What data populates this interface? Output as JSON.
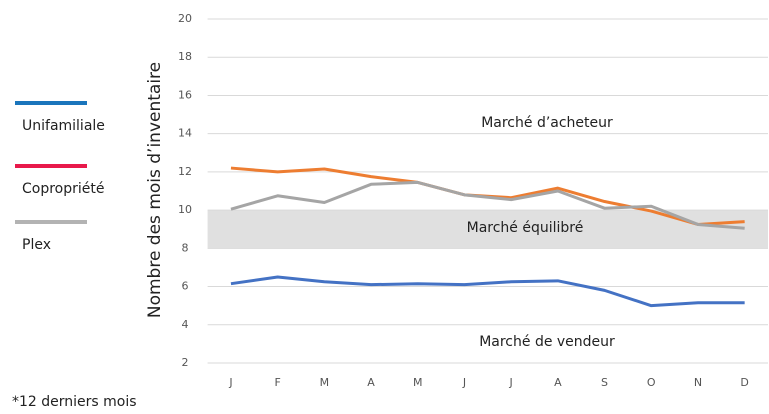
{
  "chart_data": {
    "type": "line",
    "y_label": "Nombre des mois d’inventaire",
    "footnote": "*12 derniers mois",
    "categories": [
      "J",
      "F",
      "M",
      "A",
      "M",
      "J",
      "J",
      "A",
      "S",
      "O",
      "N",
      "D"
    ],
    "series": [
      {
        "name": "Unifamiliale",
        "color": "#4472c4",
        "legend_color": "#1a75bc",
        "values": [
          6.15,
          6.5,
          6.25,
          6.1,
          6.15,
          6.1,
          6.25,
          6.3,
          5.8,
          5.0,
          5.15,
          5.15
        ]
      },
      {
        "name": "Copropriété",
        "color": "#ed7d31",
        "legend_color": "#e8194b",
        "values": [
          12.2,
          12.0,
          12.15,
          11.75,
          11.45,
          10.8,
          10.65,
          11.15,
          10.45,
          9.95,
          9.25,
          9.4
        ]
      },
      {
        "name": "Plex",
        "color": "#a5a5a5",
        "legend_color": "#b3b3b3",
        "values": [
          10.05,
          10.75,
          10.4,
          11.35,
          11.45,
          10.8,
          10.55,
          11.0,
          10.1,
          10.2,
          9.25,
          9.05
        ]
      }
    ],
    "band": {
      "from": 8,
      "to": 10,
      "color": "#e0e0e0"
    },
    "annotations": [
      "Marché d’acheteur",
      "Marché équilibré",
      "Marché de vendeur"
    ],
    "ylim": [
      2,
      20
    ],
    "yticks": [
      2,
      4,
      6,
      8,
      10,
      12,
      14,
      16,
      18,
      20
    ],
    "grid": true
  }
}
